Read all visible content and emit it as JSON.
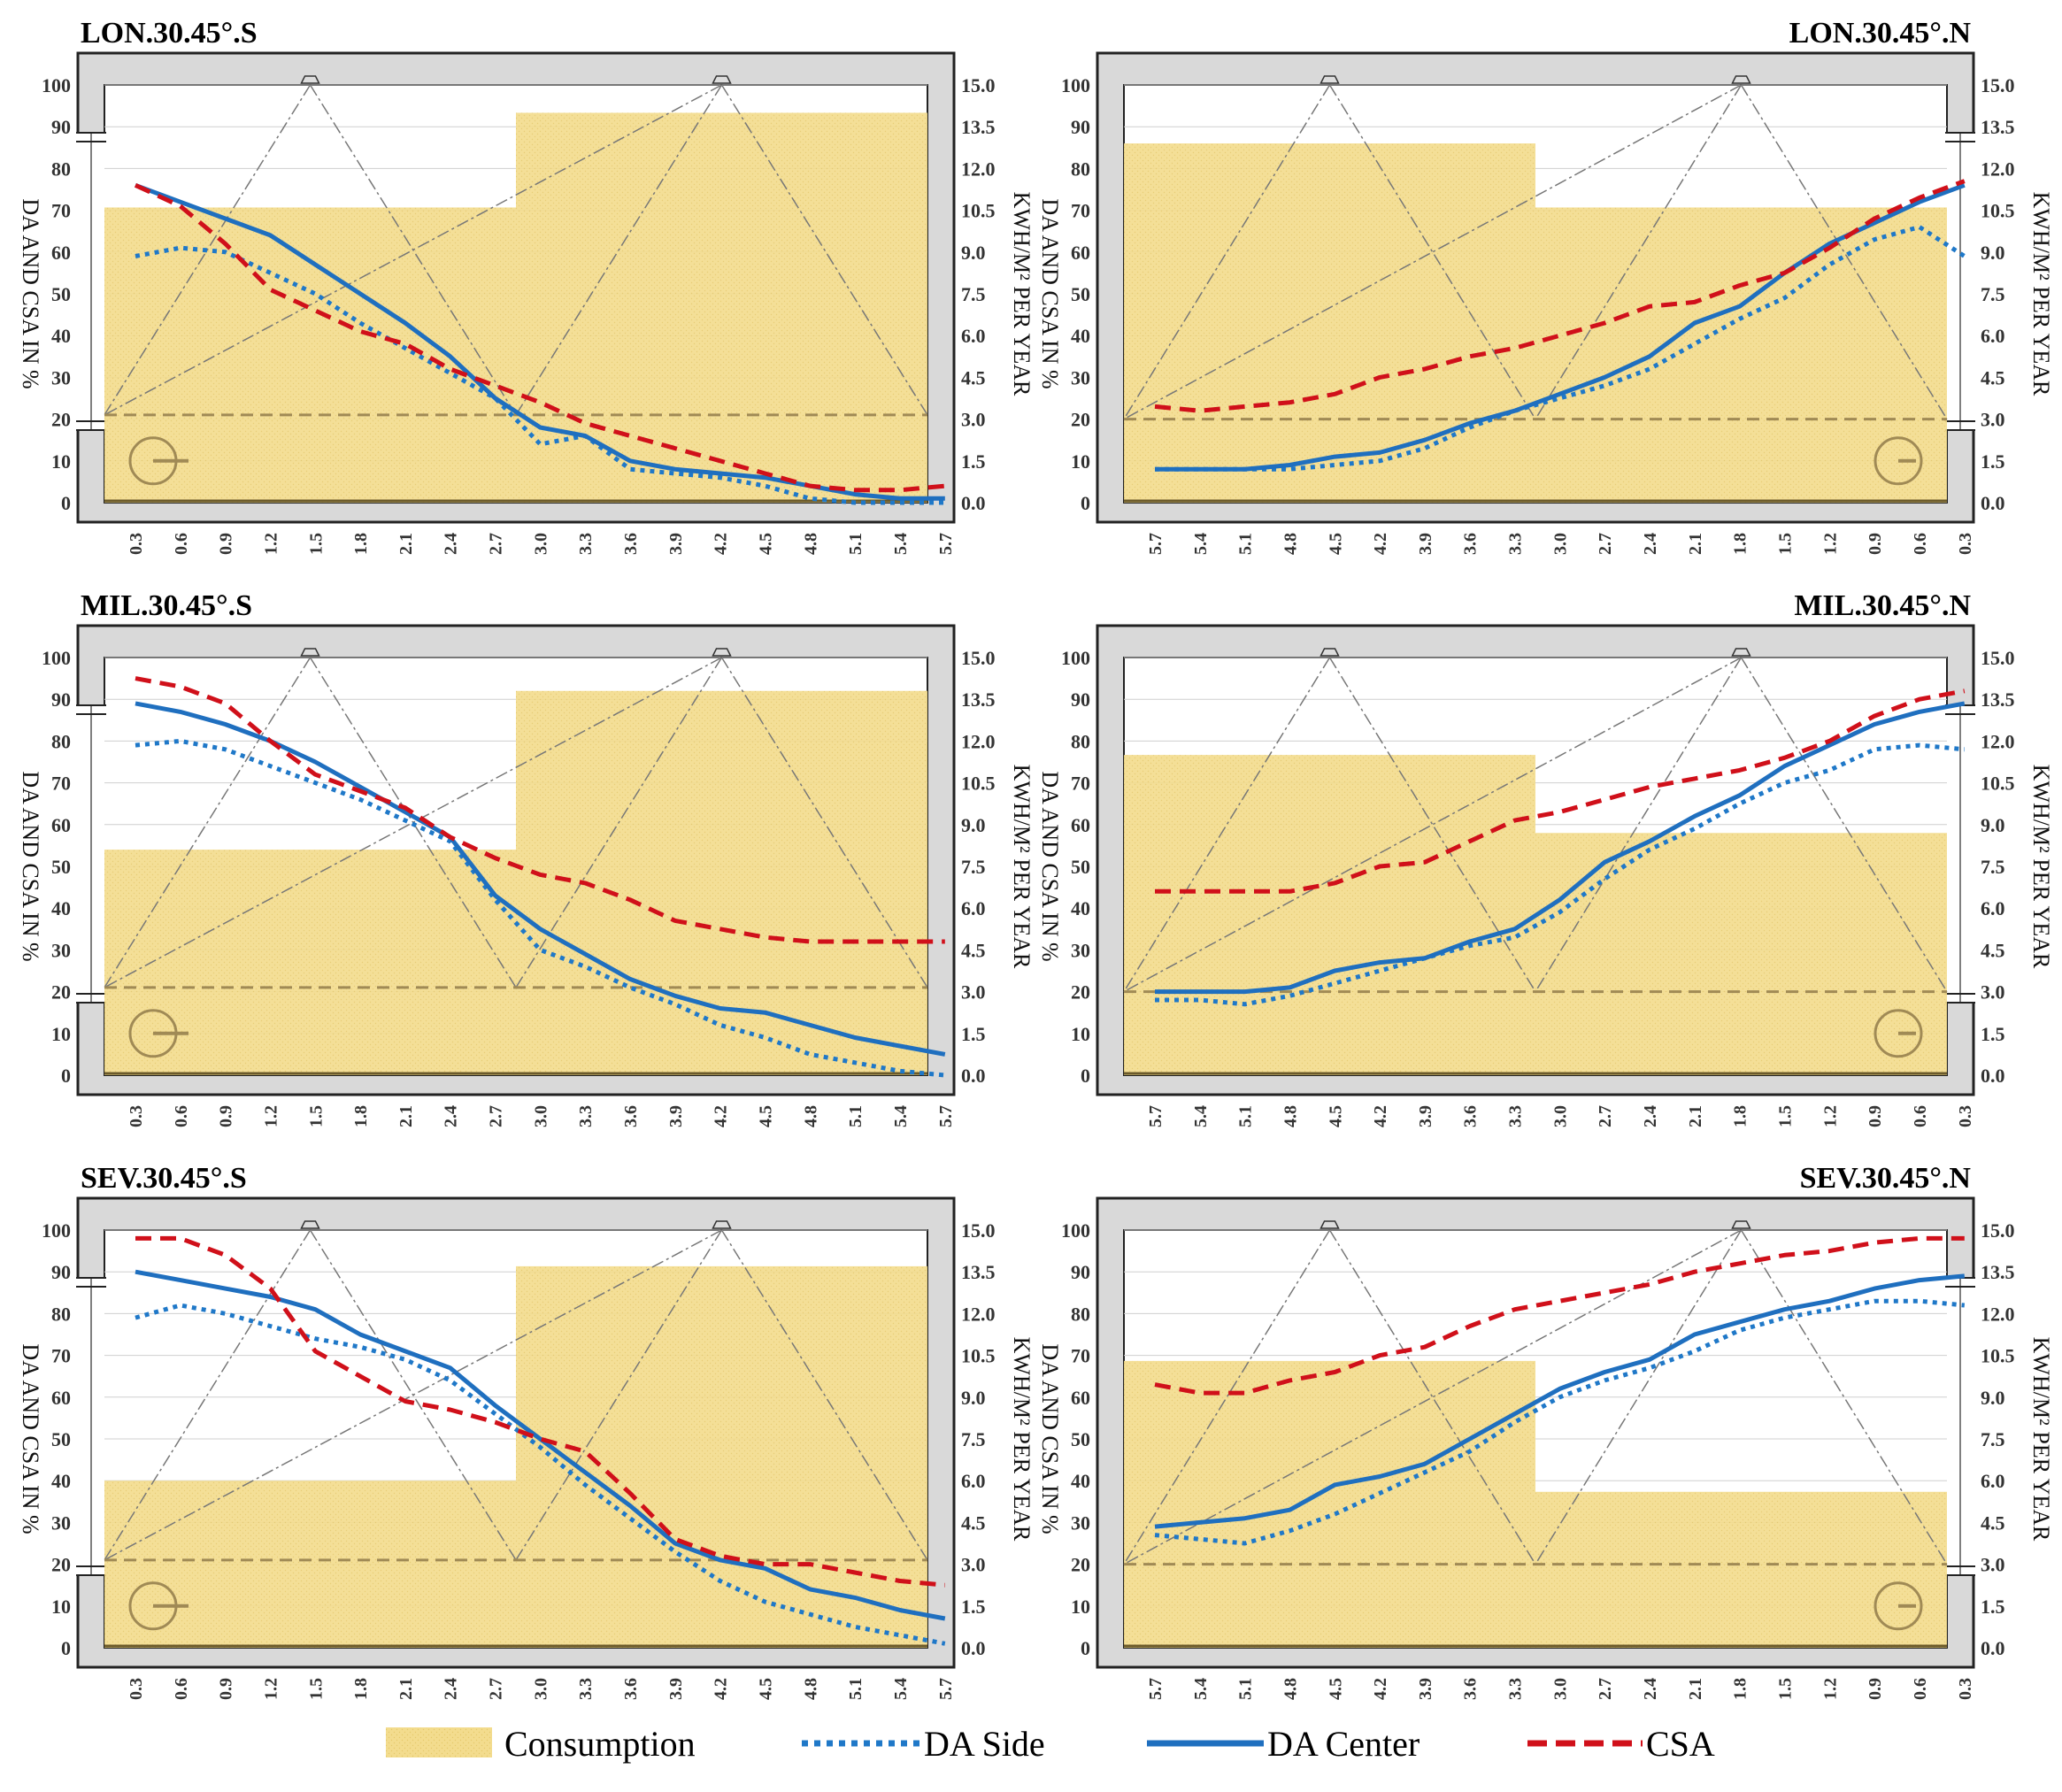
{
  "legend": {
    "consumption": "Consumption",
    "da_side": "DA Side",
    "da_center": "DA Center",
    "csa": "CSA"
  },
  "colors": {
    "consumption": "#f3dc8e",
    "da_side": "#1f78c8",
    "da_center": "#1f6fbf",
    "csa": "#d0101a",
    "frame": "#d9d9d9",
    "threshold": "#a08a55"
  },
  "axes": {
    "left_label": "DA AND CSA IN %",
    "right_label": "KWH/M² PER YEAR",
    "left_ticks": [
      "0",
      "10",
      "20",
      "30",
      "40",
      "50",
      "60",
      "70",
      "80",
      "90",
      "100"
    ],
    "right_ticks": [
      "0.0",
      "1.5",
      "3.0",
      "4.5",
      "6.0",
      "7.5",
      "9.0",
      "10.5",
      "12.0",
      "13.5",
      "15.0"
    ]
  },
  "chart_data": [
    {
      "title": "LON.30.45°.S",
      "type": "line",
      "x": [
        "0.3",
        "0.6",
        "0.9",
        "1.2",
        "1.5",
        "1.8",
        "2.1",
        "2.4",
        "2.7",
        "3.0",
        "3.3",
        "3.6",
        "3.9",
        "4.2",
        "4.5",
        "4.8",
        "5.1",
        "5.4",
        "5.7"
      ],
      "ylim": [
        0,
        100
      ],
      "y2lim": [
        0,
        15
      ],
      "consumption": [
        10.6,
        14.0
      ],
      "threshold": 21,
      "series": [
        {
          "name": "DA Side",
          "values": [
            59,
            61,
            60,
            55,
            50,
            43,
            37,
            31,
            25,
            14,
            16,
            8,
            7,
            6,
            4,
            1,
            0,
            0,
            0
          ]
        },
        {
          "name": "DA Center",
          "values": [
            76,
            72,
            68,
            64,
            57,
            50,
            43,
            35,
            25,
            18,
            16,
            10,
            8,
            7,
            6,
            4,
            2,
            1,
            1
          ]
        },
        {
          "name": "CSA",
          "values": [
            76,
            71,
            62,
            51,
            46,
            41,
            38,
            32,
            28,
            24,
            19,
            16,
            13,
            10,
            7,
            4,
            3,
            3,
            4
          ]
        }
      ]
    },
    {
      "title": "LON.30.45°.N",
      "type": "line",
      "x": [
        "5.7",
        "5.4",
        "5.1",
        "4.8",
        "4.5",
        "4.2",
        "3.9",
        "3.6",
        "3.3",
        "3.0",
        "2.7",
        "2.4",
        "2.1",
        "1.8",
        "1.5",
        "1.2",
        "0.9",
        "0.6",
        "0.3"
      ],
      "ylim": [
        0,
        100
      ],
      "y2lim": [
        0,
        15
      ],
      "consumption": [
        12.9,
        10.6
      ],
      "threshold": 20,
      "series": [
        {
          "name": "DA Side",
          "values": [
            8,
            8,
            8,
            8,
            9,
            10,
            13,
            18,
            22,
            25,
            28,
            32,
            38,
            44,
            49,
            57,
            63,
            66,
            59
          ]
        },
        {
          "name": "DA Center",
          "values": [
            8,
            8,
            8,
            9,
            11,
            12,
            15,
            19,
            22,
            26,
            30,
            35,
            43,
            47,
            55,
            62,
            67,
            72,
            76
          ]
        },
        {
          "name": "CSA",
          "values": [
            23,
            22,
            23,
            24,
            26,
            30,
            32,
            35,
            37,
            40,
            43,
            47,
            48,
            52,
            55,
            61,
            68,
            73,
            77
          ]
        }
      ]
    },
    {
      "title": "MIL.30.45°.S",
      "type": "line",
      "x": [
        "0.3",
        "0.6",
        "0.9",
        "1.2",
        "1.5",
        "1.8",
        "2.1",
        "2.4",
        "2.7",
        "3.0",
        "3.3",
        "3.6",
        "3.9",
        "4.2",
        "4.5",
        "4.8",
        "5.1",
        "5.4",
        "5.7"
      ],
      "ylim": [
        0,
        100
      ],
      "y2lim": [
        0,
        15
      ],
      "consumption": [
        8.1,
        13.8
      ],
      "threshold": 21,
      "series": [
        {
          "name": "DA Side",
          "values": [
            79,
            80,
            78,
            74,
            70,
            66,
            61,
            56,
            42,
            30,
            26,
            21,
            17,
            12,
            9,
            5,
            3,
            1,
            0
          ]
        },
        {
          "name": "DA Center",
          "values": [
            89,
            87,
            84,
            80,
            75,
            69,
            63,
            57,
            43,
            35,
            29,
            23,
            19,
            16,
            15,
            12,
            9,
            7,
            5
          ]
        },
        {
          "name": "CSA",
          "values": [
            95,
            93,
            89,
            80,
            72,
            68,
            64,
            57,
            52,
            48,
            46,
            42,
            37,
            35,
            33,
            32,
            32,
            32,
            32
          ]
        }
      ]
    },
    {
      "title": "MIL.30.45°.N",
      "type": "line",
      "x": [
        "5.7",
        "5.4",
        "5.1",
        "4.8",
        "4.5",
        "4.2",
        "3.9",
        "3.6",
        "3.3",
        "3.0",
        "2.7",
        "2.4",
        "2.1",
        "1.8",
        "1.5",
        "1.2",
        "0.9",
        "0.6",
        "0.3"
      ],
      "ylim": [
        0,
        100
      ],
      "y2lim": [
        0,
        15
      ],
      "consumption": [
        11.5,
        8.7
      ],
      "threshold": 20,
      "series": [
        {
          "name": "DA Side",
          "values": [
            18,
            18,
            17,
            19,
            22,
            25,
            28,
            31,
            33,
            39,
            47,
            54,
            59,
            65,
            70,
            73,
            78,
            79,
            78
          ]
        },
        {
          "name": "DA Center",
          "values": [
            20,
            20,
            20,
            21,
            25,
            27,
            28,
            32,
            35,
            42,
            51,
            56,
            62,
            67,
            74,
            79,
            84,
            87,
            89
          ]
        },
        {
          "name": "CSA",
          "values": [
            44,
            44,
            44,
            44,
            46,
            50,
            51,
            56,
            61,
            63,
            66,
            69,
            71,
            73,
            76,
            80,
            86,
            90,
            92
          ]
        }
      ]
    },
    {
      "title": "SEV.30.45°.S",
      "type": "line",
      "x": [
        "0.3",
        "0.6",
        "0.9",
        "1.2",
        "1.5",
        "1.8",
        "2.1",
        "2.4",
        "2.7",
        "3.0",
        "3.3",
        "3.6",
        "3.9",
        "4.2",
        "4.5",
        "4.8",
        "5.1",
        "5.4",
        "5.7"
      ],
      "ylim": [
        0,
        100
      ],
      "y2lim": [
        0,
        15
      ],
      "consumption": [
        6.0,
        13.7
      ],
      "threshold": 21,
      "series": [
        {
          "name": "DA Side",
          "values": [
            79,
            82,
            80,
            77,
            74,
            72,
            69,
            64,
            56,
            48,
            39,
            31,
            23,
            16,
            11,
            8,
            5,
            3,
            1
          ]
        },
        {
          "name": "DA Center",
          "values": [
            90,
            88,
            86,
            84,
            81,
            75,
            71,
            67,
            58,
            50,
            42,
            34,
            25,
            21,
            19,
            14,
            12,
            9,
            7
          ]
        },
        {
          "name": "CSA",
          "values": [
            98,
            98,
            94,
            86,
            71,
            65,
            59,
            57,
            54,
            50,
            47,
            37,
            26,
            22,
            20,
            20,
            18,
            16,
            15
          ]
        }
      ]
    },
    {
      "title": "SEV.30.45°.N",
      "type": "line",
      "x": [
        "5.7",
        "5.4",
        "5.1",
        "4.8",
        "4.5",
        "4.2",
        "3.9",
        "3.6",
        "3.3",
        "3.0",
        "2.7",
        "2.4",
        "2.1",
        "1.8",
        "1.5",
        "1.2",
        "0.9",
        "0.6",
        "0.3"
      ],
      "ylim": [
        0,
        100
      ],
      "y2lim": [
        0,
        15
      ],
      "consumption": [
        10.3,
        5.6
      ],
      "threshold": 20,
      "series": [
        {
          "name": "DA Side",
          "values": [
            27,
            26,
            25,
            28,
            32,
            37,
            42,
            47,
            54,
            60,
            64,
            67,
            71,
            76,
            79,
            81,
            83,
            83,
            82
          ]
        },
        {
          "name": "DA Center",
          "values": [
            29,
            30,
            31,
            33,
            39,
            41,
            44,
            50,
            56,
            62,
            66,
            69,
            75,
            78,
            81,
            83,
            86,
            88,
            89
          ]
        },
        {
          "name": "CSA",
          "values": [
            63,
            61,
            61,
            64,
            66,
            70,
            72,
            77,
            81,
            83,
            85,
            87,
            90,
            92,
            94,
            95,
            97,
            98,
            98
          ]
        }
      ]
    }
  ]
}
